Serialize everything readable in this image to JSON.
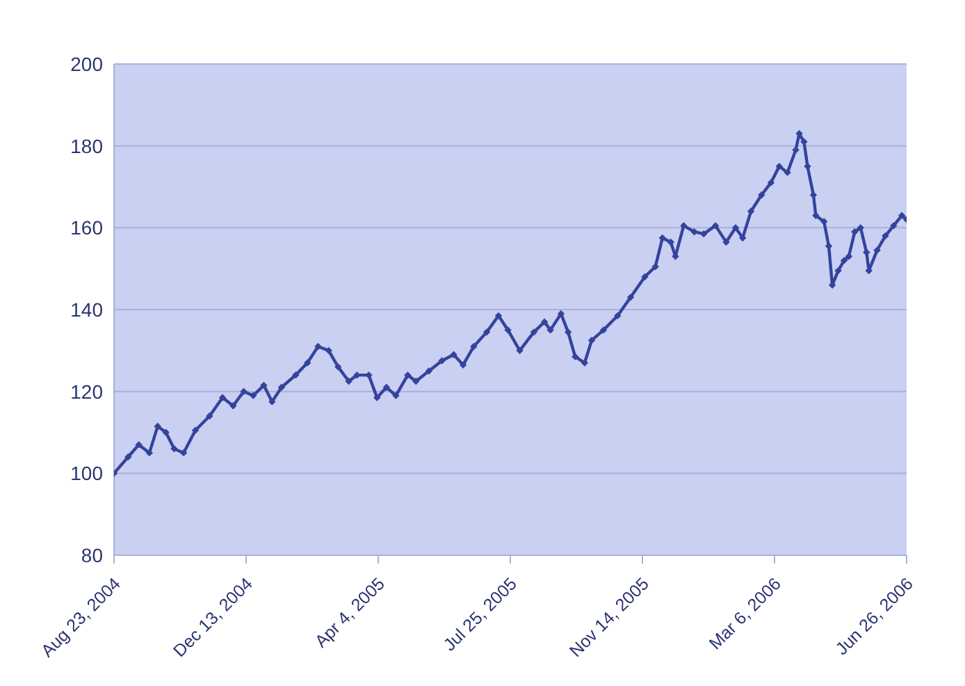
{
  "chart_data": {
    "type": "line",
    "marker": "diamond",
    "line_style": "solid",
    "grid": "y",
    "x": [
      "2004-08-23",
      "2004-09-04",
      "2004-09-13",
      "2004-09-22",
      "2004-09-29",
      "2004-10-06",
      "2004-10-13",
      "2004-10-21",
      "2004-10-31",
      "2004-11-12",
      "2004-11-23",
      "2004-12-02",
      "2004-12-11",
      "2004-12-19",
      "2004-12-28",
      "2005-01-04",
      "2005-01-12",
      "2005-01-24",
      "2005-02-03",
      "2005-02-12",
      "2005-02-21",
      "2005-03-01",
      "2005-03-10",
      "2005-03-17",
      "2005-03-27",
      "2005-04-03",
      "2005-04-11",
      "2005-04-19",
      "2005-04-29",
      "2005-05-06",
      "2005-05-17",
      "2005-05-28",
      "2005-06-07",
      "2005-06-15",
      "2005-06-24",
      "2005-07-05",
      "2005-07-15",
      "2005-07-23",
      "2005-08-02",
      "2005-08-14",
      "2005-08-23",
      "2005-08-28",
      "2005-09-06",
      "2005-09-12",
      "2005-09-18",
      "2005-09-26",
      "2005-10-02",
      "2005-10-12",
      "2005-10-24",
      "2005-11-04",
      "2005-11-16",
      "2005-11-25",
      "2005-12-01",
      "2005-12-08",
      "2005-12-12",
      "2005-12-19",
      "2005-12-28",
      "2006-01-05",
      "2006-01-15",
      "2006-01-24",
      "2006-02-01",
      "2006-02-07",
      "2006-02-14",
      "2006-02-23",
      "2006-03-03",
      "2006-03-10",
      "2006-03-17",
      "2006-03-24",
      "2006-03-27",
      "2006-03-31",
      "2006-04-03",
      "2006-04-08",
      "2006-04-10",
      "2006-04-17",
      "2006-04-21",
      "2006-04-24",
      "2006-04-29",
      "2006-05-04",
      "2006-05-08",
      "2006-05-13",
      "2006-05-18",
      "2006-05-23",
      "2006-05-25",
      "2006-06-01",
      "2006-06-08",
      "2006-06-15",
      "2006-06-22",
      "2006-06-26"
    ],
    "series": [
      {
        "color": "#34449c",
        "values": [
          100,
          104,
          107,
          105,
          111.5,
          110,
          106,
          105,
          110.5,
          114,
          118.5,
          116.5,
          120,
          119,
          121.5,
          117.5,
          121,
          124,
          127,
          131,
          130,
          126,
          122.5,
          124,
          124,
          118.5,
          121,
          119,
          124,
          122.5,
          125,
          127.5,
          129,
          126.5,
          131,
          134.5,
          138.5,
          135,
          130,
          134.5,
          137,
          135,
          139,
          134.5,
          128.5,
          127,
          132.5,
          135,
          138.5,
          143,
          148,
          150.5,
          157.5,
          156.5,
          153,
          160.5,
          159,
          158.5,
          160.5,
          156.5,
          160,
          157.5,
          164,
          168,
          171,
          175,
          173.5,
          179,
          183,
          181,
          175,
          168,
          163,
          161.5,
          155.5,
          146,
          149.5,
          152,
          153,
          159,
          160,
          154,
          149.5,
          154.5,
          158,
          160.5,
          163,
          162
        ]
      }
    ],
    "xlim": [
      "2004-08-23",
      "2006-06-26"
    ],
    "xticks": [
      {
        "value": "2004-08-23",
        "label": "Aug 23, 2004"
      },
      {
        "value": "2004-12-13",
        "label": "Dec 13, 2004"
      },
      {
        "value": "2005-04-04",
        "label": "Apr 4, 2005"
      },
      {
        "value": "2005-07-25",
        "label": "Jul 25, 2005"
      },
      {
        "value": "2005-11-14",
        "label": "Nov 14, 2005"
      },
      {
        "value": "2006-03-06",
        "label": "Mar 6, 2006"
      },
      {
        "value": "2006-06-26",
        "label": "Jun 26, 2006"
      }
    ],
    "ylim": [
      80,
      200
    ],
    "yticks": [
      80,
      100,
      120,
      140,
      160,
      180,
      200
    ]
  }
}
